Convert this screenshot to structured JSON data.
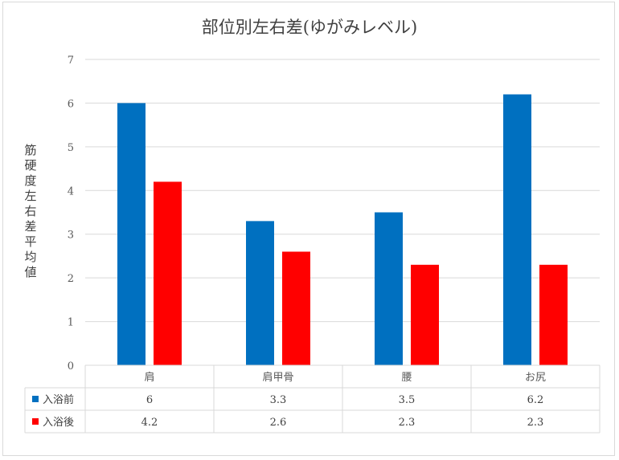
{
  "chart_data": {
    "type": "bar",
    "title": "部位別左右差(ゆがみレベル)",
    "ylabel": "筋硬度左右差平均値",
    "xlabel": "",
    "ylim": [
      0,
      7
    ],
    "yticks": [
      0,
      1,
      2,
      3,
      4,
      5,
      6,
      7
    ],
    "grid": true,
    "legend": "data-table",
    "categories": [
      "肩",
      "肩甲骨",
      "腰",
      "お尻"
    ],
    "series": [
      {
        "name": "入浴前",
        "color": "#0070c0",
        "values": [
          6,
          3.3,
          3.5,
          6.2
        ],
        "labels": [
          "6",
          "3.3",
          "3.5",
          "6.2"
        ]
      },
      {
        "name": "入浴後",
        "color": "#ff0000",
        "values": [
          4.2,
          2.6,
          2.3,
          2.3
        ],
        "labels": [
          "4.2",
          "2.6",
          "2.3",
          "2.3"
        ]
      }
    ]
  }
}
